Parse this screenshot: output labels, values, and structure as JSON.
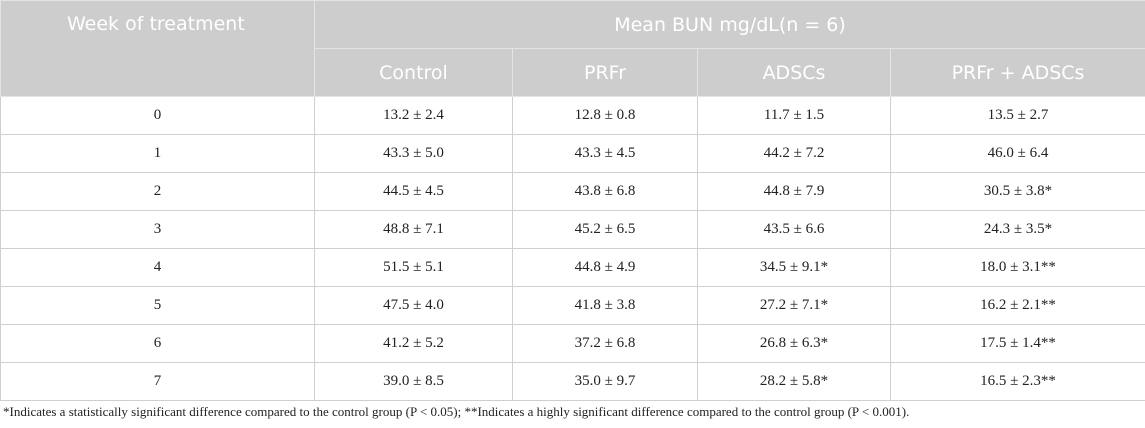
{
  "table": {
    "header": {
      "week": "Week of treatment",
      "group": "Mean BUN mg/dL(n = 6)",
      "columns": [
        "Control",
        "PRFr",
        "ADSCs",
        "PRFr + ADSCs"
      ]
    },
    "rows": [
      [
        "0",
        "13.2 ± 2.4",
        "12.8 ± 0.8",
        "11.7 ± 1.5",
        "13.5 ± 2.7"
      ],
      [
        "1",
        "43.3 ± 5.0",
        "43.3 ± 4.5",
        "44.2 ± 7.2",
        "46.0 ± 6.4"
      ],
      [
        "2",
        "44.5 ± 4.5",
        "43.8 ± 6.8",
        "44.8 ± 7.9",
        "30.5 ± 3.8*"
      ],
      [
        "3",
        "48.8 ± 7.1",
        "45.2 ± 6.5",
        "43.5 ± 6.6",
        "24.3 ± 3.5*"
      ],
      [
        "4",
        "51.5 ± 5.1",
        "44.8 ± 4.9",
        "34.5 ± 9.1*",
        "18.0 ± 3.1**"
      ],
      [
        "5",
        "47.5 ± 4.0",
        "41.8 ± 3.8",
        "27.2 ± 7.1*",
        "16.2 ± 2.1**"
      ],
      [
        "6",
        "41.2 ± 5.2",
        "37.2 ± 6.8",
        "26.8 ± 6.3*",
        "17.5 ± 1.4**"
      ],
      [
        "7",
        "39.0 ± 8.5",
        "35.0 ± 9.7",
        "28.2 ± 5.8*",
        "16.5 ± 2.3**"
      ]
    ],
    "footnote": "*Indicates a statistically significant difference compared to the control group (P < 0.05); **Indicates a highly significant difference compared to the control group (P < 0.001)."
  }
}
